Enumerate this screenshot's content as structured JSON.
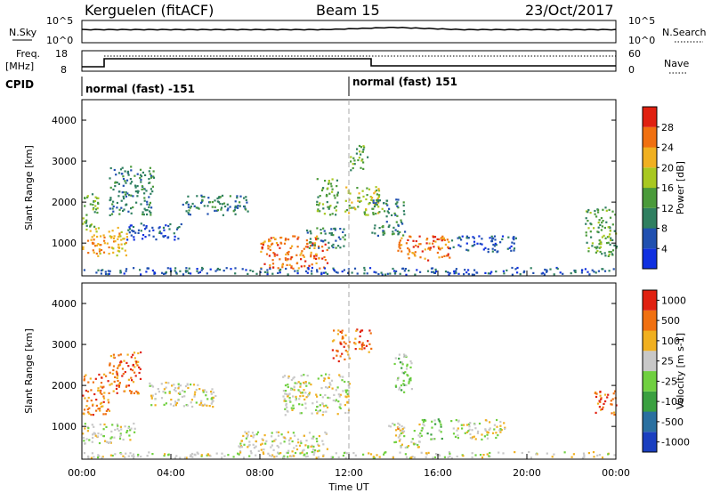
{
  "header": {
    "radar": "Kerguelen (fitACF)",
    "beam": "Beam 15",
    "date": "23/Oct/2017"
  },
  "strip": {
    "nsky_label": "N.Sky",
    "nsearch_label": "N.Search",
    "nsky_ticks": [
      "10^5",
      "10^0"
    ],
    "nsearch_ticks": [
      "10^5",
      "10^0"
    ],
    "freq_label_1": "Freq.",
    "freq_label_2": "[MHz]",
    "freq_ticks": [
      "18",
      "8"
    ],
    "nave_label": "Nave",
    "nave_ticks": [
      "60",
      "0"
    ],
    "cpid_label": "CPID",
    "cpid_segments": [
      {
        "start": "00:00",
        "label": "normal (fast) -151"
      },
      {
        "start": "12:00",
        "label": "normal (fast) 151"
      }
    ]
  },
  "chart_data": [
    {
      "type": "heatmap",
      "panel": "power",
      "ylabel": "Slant Range [km]",
      "xlabel": "Time UT",
      "x_ticks": [
        "00:00",
        "04:00",
        "08:00",
        "12:00",
        "16:00",
        "20:00",
        "00:00"
      ],
      "y_ticks": [
        1000,
        2000,
        3000,
        4000
      ],
      "ylim": [
        200,
        4500
      ],
      "xlim_hours": [
        0,
        24
      ],
      "colorbar": {
        "label": "Power [dB]",
        "ticks": [
          "4",
          "8",
          "12",
          "16",
          "20",
          "24",
          "28"
        ],
        "colors": [
          "#1030e0",
          "#2050b0",
          "#2f7f60",
          "#4a9a3a",
          "#a8c820",
          "#f0b020",
          "#f07010",
          "#e02010"
        ]
      },
      "regions": [
        {
          "t0": 0.0,
          "t1": 2.0,
          "r0": 700,
          "r1": 1400,
          "level": 5
        },
        {
          "t0": 0.0,
          "t1": 0.7,
          "r0": 1400,
          "r1": 2300,
          "level": 3
        },
        {
          "t0": 1.2,
          "t1": 3.2,
          "r0": 1700,
          "r1": 2900,
          "level": 2
        },
        {
          "t0": 2.0,
          "t1": 4.5,
          "r0": 1100,
          "r1": 1500,
          "level": 1
        },
        {
          "t0": 4.5,
          "t1": 7.5,
          "r0": 1700,
          "r1": 2200,
          "level": 2
        },
        {
          "t0": 8.0,
          "t1": 11.0,
          "r0": 400,
          "r1": 1200,
          "level": 6
        },
        {
          "t0": 10.0,
          "t1": 11.8,
          "r0": 900,
          "r1": 1400,
          "level": 2
        },
        {
          "t0": 10.5,
          "t1": 11.5,
          "r0": 1700,
          "r1": 2600,
          "level": 3
        },
        {
          "t0": 11.8,
          "t1": 13.5,
          "r0": 1700,
          "r1": 2400,
          "level": 4
        },
        {
          "t0": 12.0,
          "t1": 12.8,
          "r0": 2800,
          "r1": 3400,
          "level": 3
        },
        {
          "t0": 13.0,
          "t1": 14.5,
          "r0": 1200,
          "r1": 2100,
          "level": 2
        },
        {
          "t0": 14.0,
          "t1": 16.5,
          "r0": 600,
          "r1": 1200,
          "level": 6
        },
        {
          "t0": 16.5,
          "t1": 19.5,
          "r0": 800,
          "r1": 1200,
          "level": 1
        },
        {
          "t0": 22.6,
          "t1": 24.0,
          "r0": 700,
          "r1": 1900,
          "level": 3
        },
        {
          "t0": 0.0,
          "t1": 24.0,
          "r0": 250,
          "r1": 420,
          "level": 1
        }
      ]
    },
    {
      "type": "heatmap",
      "panel": "velocity",
      "ylabel": "Slant Range [km]",
      "xlabel": "Time UT",
      "x_ticks": [
        "00:00",
        "04:00",
        "08:00",
        "12:00",
        "16:00",
        "20:00",
        "00:00"
      ],
      "y_ticks": [
        1000,
        2000,
        3000,
        4000
      ],
      "ylim": [
        200,
        4500
      ],
      "xlim_hours": [
        0,
        24
      ],
      "colorbar": {
        "label": "Velocity [m s-1]",
        "ticks": [
          "1000",
          "500",
          "100",
          "25",
          "-25",
          "-100",
          "-500",
          "-1000"
        ],
        "colors": [
          "#1a3fc0",
          "#2a70a0",
          "#3aa040",
          "#70d040",
          "#c8c8c8",
          "#f0b020",
          "#f07010",
          "#e02010"
        ]
      },
      "regions": [
        {
          "t0": 0.0,
          "t1": 1.2,
          "r0": 1300,
          "r1": 2300,
          "level": 6
        },
        {
          "t0": 1.2,
          "t1": 2.6,
          "r0": 1800,
          "r1": 2900,
          "level": 6
        },
        {
          "t0": 0.0,
          "t1": 2.4,
          "r0": 600,
          "r1": 1100,
          "level": 4
        },
        {
          "t0": 3.0,
          "t1": 6.0,
          "r0": 1500,
          "r1": 2100,
          "level": 4
        },
        {
          "t0": 7.0,
          "t1": 11.0,
          "r0": 400,
          "r1": 900,
          "level": 4
        },
        {
          "t0": 9.0,
          "t1": 12.0,
          "r0": 1300,
          "r1": 2300,
          "level": 4
        },
        {
          "t0": 11.2,
          "t1": 12.0,
          "r0": 2600,
          "r1": 3400,
          "level": 6
        },
        {
          "t0": 12.2,
          "t1": 13.0,
          "r0": 2800,
          "r1": 3400,
          "level": 6
        },
        {
          "t0": 14.0,
          "t1": 14.8,
          "r0": 1800,
          "r1": 2800,
          "level": 3
        },
        {
          "t0": 15.2,
          "t1": 16.2,
          "r0": 700,
          "r1": 1200,
          "level": 3
        },
        {
          "t0": 14.0,
          "t1": 15.2,
          "r0": 500,
          "r1": 1100,
          "level": 4
        },
        {
          "t0": 13.5,
          "t1": 14.5,
          "r0": 900,
          "r1": 1100,
          "level": 5
        },
        {
          "t0": 16.5,
          "t1": 19.0,
          "r0": 700,
          "r1": 1200,
          "level": 4
        },
        {
          "t0": 23.0,
          "t1": 24.0,
          "r0": 1300,
          "r1": 1900,
          "level": 6
        },
        {
          "t0": 0.0,
          "t1": 24.0,
          "r0": 250,
          "r1": 400,
          "level": 4
        }
      ]
    }
  ]
}
